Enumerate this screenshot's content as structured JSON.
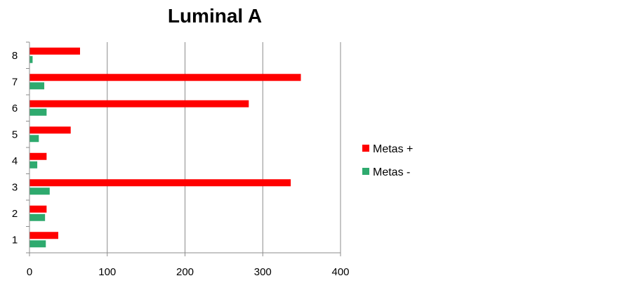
{
  "chart_data": {
    "type": "bar",
    "orientation": "horizontal",
    "title": "Luminal A",
    "xlabel": "",
    "ylabel": "",
    "categories": [
      "1",
      "2",
      "3",
      "4",
      "5",
      "6",
      "7",
      "8"
    ],
    "xlim": [
      0,
      400
    ],
    "x_ticks": [
      "0",
      "100",
      "200",
      "300",
      "400"
    ],
    "grid": true,
    "legend_position": "right",
    "series": [
      {
        "name": "Metas +",
        "color": "#ff0000",
        "values": [
          37,
          22,
          336,
          22,
          53,
          282,
          349,
          65
        ]
      },
      {
        "name": "Metas -",
        "color": "#2eaa6e",
        "values": [
          21,
          20,
          26,
          10,
          12,
          22,
          19,
          4
        ]
      }
    ]
  }
}
